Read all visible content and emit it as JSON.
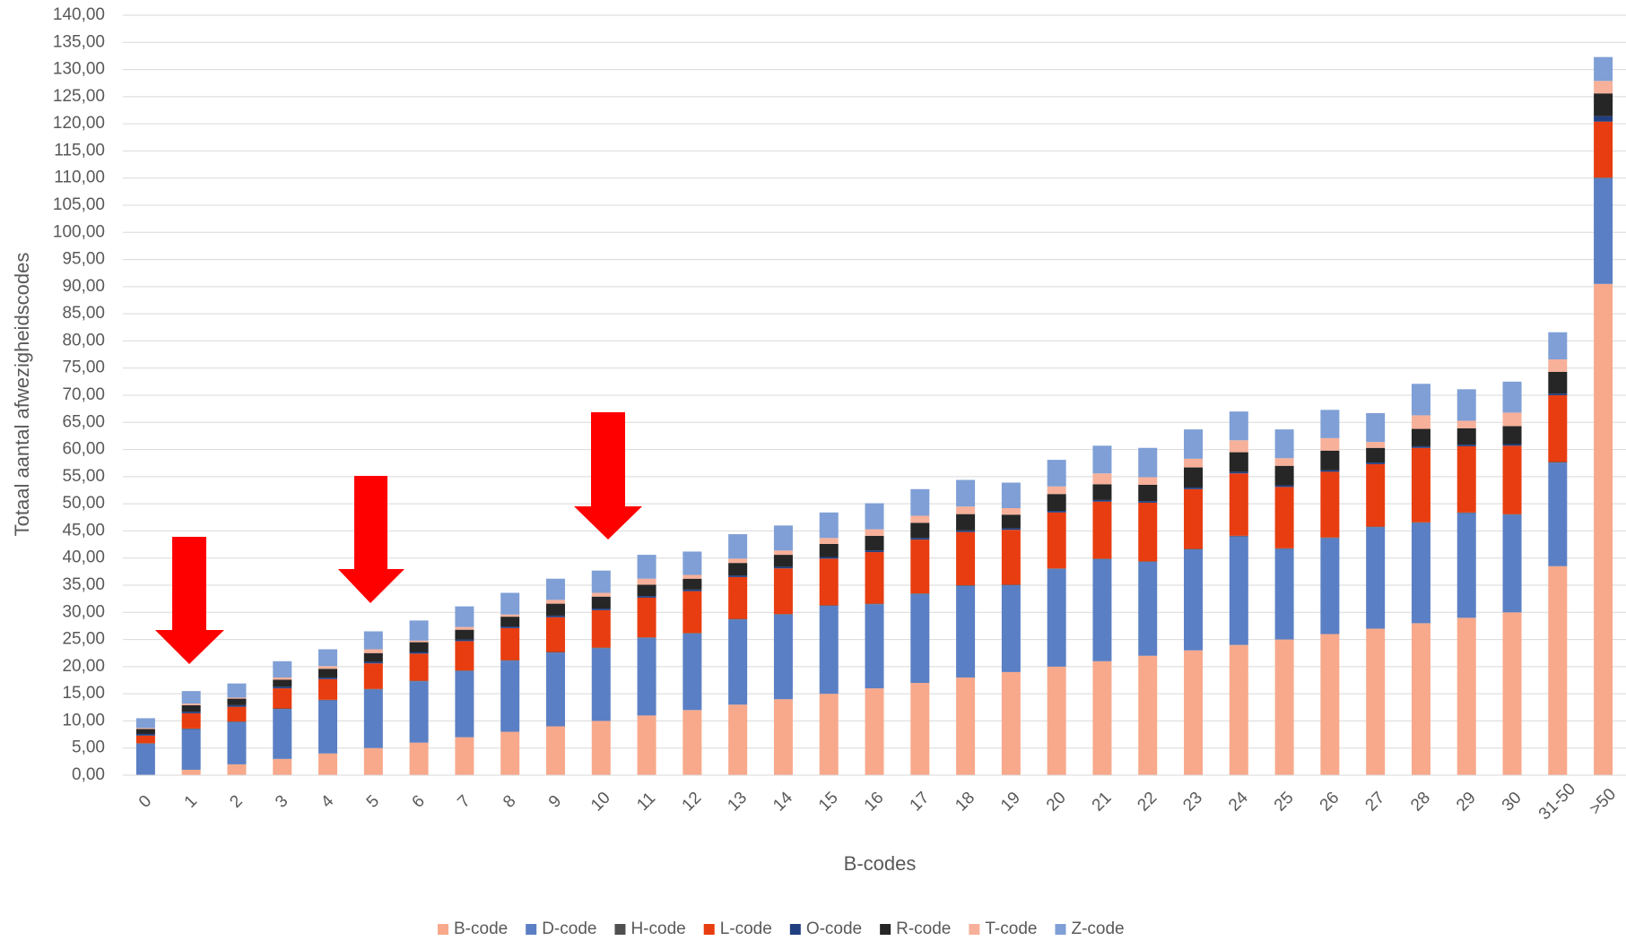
{
  "chart_data": {
    "type": "stacked_bar",
    "x_label": "B-codes",
    "y_label": "Totaal aantal afwezigheidscodes",
    "categories": [
      "0",
      "1",
      "2",
      "3",
      "4",
      "5",
      "6",
      "7",
      "8",
      "9",
      "10",
      "11",
      "12",
      "13",
      "14",
      "15",
      "16",
      "17",
      "18",
      "19",
      "20",
      "21",
      "22",
      "23",
      "24",
      "25",
      "26",
      "27",
      "28",
      "29",
      "30",
      "31-50",
      ">50"
    ],
    "series": [
      {
        "name": "B-code",
        "color": "#f8a98b",
        "values": [
          0,
          1,
          2,
          3,
          4,
          5,
          6,
          7,
          8,
          9,
          10,
          11,
          12,
          13,
          14,
          15,
          16,
          17,
          18,
          19,
          20,
          21,
          22,
          23,
          24,
          25,
          26,
          27,
          28,
          29,
          30,
          38.5,
          90.5
        ]
      },
      {
        "name": "D-code",
        "color": "#5b7fc4",
        "values": [
          5.8,
          7.5,
          7.8,
          9.2,
          9.8,
          10.8,
          11.3,
          12.2,
          13.1,
          13.6,
          13.4,
          14.3,
          14.1,
          15.7,
          15.6,
          16.2,
          15.5,
          16.4,
          16.9,
          16,
          18,
          18.8,
          17.3,
          18.6,
          20,
          16.7,
          17.7,
          18.7,
          18.5,
          19.3,
          18,
          19.1,
          19.5
        ]
      },
      {
        "name": "H-code",
        "color": "#505050",
        "values": [
          0.1,
          0.1,
          0.1,
          0.1,
          0.1,
          0.1,
          0.1,
          0.1,
          0.1,
          0.1,
          0.1,
          0.1,
          0.1,
          0.1,
          0.1,
          0.1,
          0.1,
          0.1,
          0.1,
          0.1,
          0.1,
          0.1,
          0.1,
          0.1,
          0.1,
          0.1,
          0.1,
          0.1,
          0.1,
          0.1,
          0.1,
          0.1,
          0.1
        ]
      },
      {
        "name": "L-code",
        "color": "#e83d10",
        "values": [
          1.4,
          2.8,
          2.7,
          3.7,
          3.8,
          4.7,
          5,
          5.4,
          5.9,
          6.4,
          6.9,
          7.3,
          7.7,
          7.7,
          8.4,
          8.6,
          9.5,
          9.9,
          9.8,
          10.1,
          10.3,
          10.5,
          10.8,
          11,
          11.5,
          11.3,
          12.1,
          11.5,
          13.7,
          12.2,
          12.6,
          12.3,
          10.3
        ]
      },
      {
        "name": "O-code",
        "color": "#203f80",
        "values": [
          0.3,
          0.3,
          0.3,
          0.3,
          0.3,
          0.3,
          0.3,
          0.3,
          0.3,
          0.3,
          0.3,
          0.3,
          0.3,
          0.3,
          0.3,
          0.3,
          0.3,
          0.3,
          0.3,
          0.3,
          0.3,
          0.3,
          0.3,
          0.3,
          0.3,
          0.3,
          0.3,
          0.3,
          0.3,
          0.3,
          0.3,
          0.3,
          1.0
        ]
      },
      {
        "name": "R-code",
        "color": "#262626",
        "values": [
          0.9,
          1.2,
          1.2,
          1.3,
          1.6,
          1.6,
          1.8,
          1.8,
          1.8,
          2.2,
          2.2,
          2.1,
          2.0,
          2.3,
          2.2,
          2.4,
          2.7,
          2.8,
          3.0,
          2.5,
          3.1,
          2.9,
          3.0,
          3.7,
          3.6,
          3.6,
          3.6,
          2.7,
          3.2,
          3.0,
          3.3,
          4.0,
          4.2
        ]
      },
      {
        "name": "T-code",
        "color": "#f7b09a",
        "values": [
          0.2,
          0.3,
          0.2,
          0.4,
          0.5,
          0.7,
          0.3,
          0.5,
          0.4,
          0.7,
          0.7,
          1.1,
          0.7,
          0.8,
          0.8,
          1.1,
          1.2,
          1.3,
          1.4,
          1.2,
          1.4,
          2.0,
          1.4,
          1.6,
          2.2,
          1.4,
          2.3,
          1.1,
          2.5,
          1.4,
          2.5,
          2.3,
          2.3
        ]
      },
      {
        "name": "Z-code",
        "color": "#7f9fd6",
        "values": [
          1.8,
          2.3,
          2.6,
          3,
          3.1,
          3.3,
          3.7,
          3.8,
          4,
          3.9,
          4.1,
          4.4,
          4.3,
          4.5,
          4.6,
          4.7,
          4.8,
          4.9,
          4.9,
          4.7,
          4.9,
          5.1,
          5.4,
          5.4,
          5.3,
          5.3,
          5.2,
          5.3,
          5.8,
          5.8,
          5.7,
          5,
          4.4
        ]
      }
    ],
    "ylim": [
      0,
      140
    ],
    "yticks": [
      {
        "value": 0,
        "label": "0,00"
      },
      {
        "value": 5,
        "label": "5,00"
      },
      {
        "value": 10,
        "label": "10,00"
      },
      {
        "value": 15,
        "label": "15,00"
      },
      {
        "value": 20,
        "label": "20,00"
      },
      {
        "value": 25,
        "label": "25,00"
      },
      {
        "value": 30,
        "label": "30,00"
      },
      {
        "value": 35,
        "label": "35,00"
      },
      {
        "value": 40,
        "label": "40,00"
      },
      {
        "value": 45,
        "label": "45,00"
      },
      {
        "value": 50,
        "label": "50,00"
      },
      {
        "value": 55,
        "label": "55,00"
      },
      {
        "value": 60,
        "label": "60,00"
      },
      {
        "value": 65,
        "label": "65,00"
      },
      {
        "value": 70,
        "label": "70,00"
      },
      {
        "value": 75,
        "label": "75,00"
      },
      {
        "value": 80,
        "label": "80,00"
      },
      {
        "value": 85,
        "label": "85,00"
      },
      {
        "value": 90,
        "label": "90,00"
      },
      {
        "value": 95,
        "label": "95,00"
      },
      {
        "value": 100,
        "label": "100,00"
      },
      {
        "value": 105,
        "label": "105,00"
      },
      {
        "value": 110,
        "label": "110,00"
      },
      {
        "value": 115,
        "label": "115,00"
      },
      {
        "value": 120,
        "label": "120,00"
      },
      {
        "value": 125,
        "label": "125,00"
      },
      {
        "value": 130,
        "label": "130,00"
      },
      {
        "value": 135,
        "label": "135,00"
      },
      {
        "value": 140,
        "label": "140,00"
      }
    ],
    "grid": true,
    "legend": "bottom"
  }
}
